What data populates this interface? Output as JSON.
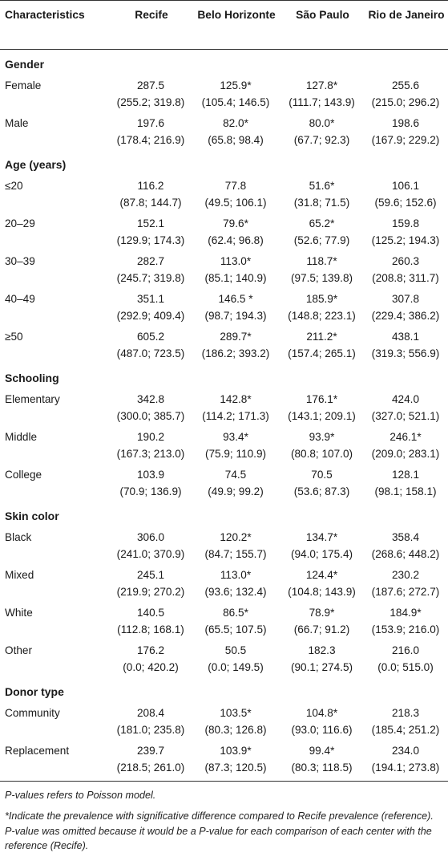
{
  "table": {
    "headers": [
      "Characteristics",
      "Recife",
      "Belo Horizonte",
      "São Paulo",
      "Rio de Janeiro"
    ],
    "sections": [
      {
        "title": "Gender",
        "rows": [
          {
            "label": "Female",
            "cells": [
              [
                "287.5",
                "(255.2; 319.8)"
              ],
              [
                "125.9*",
                "(105.4; 146.5)"
              ],
              [
                "127.8*",
                "(111.7; 143.9)"
              ],
              [
                "255.6",
                "(215.0; 296.2)"
              ]
            ]
          },
          {
            "label": "Male",
            "cells": [
              [
                "197.6",
                "(178.4; 216.9)"
              ],
              [
                "82.0*",
                "(65.8; 98.4)"
              ],
              [
                "80.0*",
                "(67.7; 92.3)"
              ],
              [
                "198.6",
                "(167.9; 229.2)"
              ]
            ]
          }
        ]
      },
      {
        "title": "Age (years)",
        "rows": [
          {
            "label": "≤20",
            "cells": [
              [
                "116.2",
                "(87.8; 144.7)"
              ],
              [
                "77.8",
                "(49.5; 106.1)"
              ],
              [
                "51.6*",
                "(31.8; 71.5)"
              ],
              [
                "106.1",
                "(59.6; 152.6)"
              ]
            ]
          },
          {
            "label": "20–29",
            "cells": [
              [
                "152.1",
                "(129.9; 174.3)"
              ],
              [
                "79.6*",
                "(62.4; 96.8)"
              ],
              [
                "65.2*",
                "(52.6; 77.9)"
              ],
              [
                "159.8",
                "(125.2; 194.3)"
              ]
            ]
          },
          {
            "label": "30–39",
            "cells": [
              [
                "282.7",
                "(245.7; 319.8)"
              ],
              [
                "113.0*",
                "(85.1; 140.9)"
              ],
              [
                "118.7*",
                "(97.5; 139.8)"
              ],
              [
                "260.3",
                "(208.8; 311.7)"
              ]
            ]
          },
          {
            "label": "40–49",
            "cells": [
              [
                "351.1",
                "(292.9; 409.4)"
              ],
              [
                "146.5 *",
                "(98.7; 194.3)"
              ],
              [
                "185.9*",
                "(148.8; 223.1)"
              ],
              [
                "307.8",
                "(229.4; 386.2)"
              ]
            ]
          },
          {
            "label": "≥50",
            "cells": [
              [
                "605.2",
                "(487.0; 723.5)"
              ],
              [
                "289.7*",
                "(186.2; 393.2)"
              ],
              [
                "211.2*",
                "(157.4; 265.1)"
              ],
              [
                "438.1",
                "(319.3; 556.9)"
              ]
            ]
          }
        ]
      },
      {
        "title": "Schooling",
        "rows": [
          {
            "label": "Elementary",
            "cells": [
              [
                "342.8",
                "(300.0; 385.7)"
              ],
              [
                "142.8*",
                "(114.2; 171.3)"
              ],
              [
                "176.1*",
                "(143.1; 209.1)"
              ],
              [
                "424.0",
                "(327.0; 521.1)"
              ]
            ]
          },
          {
            "label": "Middle",
            "cells": [
              [
                "190.2",
                "(167.3; 213.0)"
              ],
              [
                "93.4*",
                "(75.9; 110.9)"
              ],
              [
                "93.9*",
                "(80.8; 107.0)"
              ],
              [
                "246.1*",
                "(209.0; 283.1)"
              ]
            ]
          },
          {
            "label": "College",
            "cells": [
              [
                "103.9",
                "(70.9; 136.9)"
              ],
              [
                "74.5",
                "(49.9; 99.2)"
              ],
              [
                "70.5",
                "(53.6; 87.3)"
              ],
              [
                "128.1",
                "(98.1; 158.1)"
              ]
            ]
          }
        ]
      },
      {
        "title": "Skin color",
        "rows": [
          {
            "label": "Black",
            "cells": [
              [
                "306.0",
                "(241.0; 370.9)"
              ],
              [
                "120.2*",
                "(84.7; 155.7)"
              ],
              [
                "134.7*",
                "(94.0; 175.4)"
              ],
              [
                "358.4",
                "(268.6; 448.2)"
              ]
            ]
          },
          {
            "label": "Mixed",
            "cells": [
              [
                "245.1",
                "(219.9; 270.2)"
              ],
              [
                "113.0*",
                "(93.6; 132.4)"
              ],
              [
                "124.4*",
                "(104.8; 143.9)"
              ],
              [
                "230.2",
                "(187.6; 272.7)"
              ]
            ]
          },
          {
            "label": "White",
            "cells": [
              [
                "140.5",
                "(112.8; 168.1)"
              ],
              [
                "86.5*",
                "(65.5; 107.5)"
              ],
              [
                "78.9*",
                "(66.7; 91.2)"
              ],
              [
                "184.9*",
                "(153.9; 216.0)"
              ]
            ]
          },
          {
            "label": "Other",
            "cells": [
              [
                "176.2",
                "(0.0; 420.2)"
              ],
              [
                "50.5",
                "(0.0; 149.5)"
              ],
              [
                "182.3",
                "(90.1; 274.5)"
              ],
              [
                "216.0",
                "(0.0; 515.0)"
              ]
            ]
          }
        ]
      },
      {
        "title": "Donor type",
        "rows": [
          {
            "label": "Community",
            "cells": [
              [
                "208.4",
                "(181.0; 235.8)"
              ],
              [
                "103.5*",
                "(80.3; 126.8)"
              ],
              [
                "104.8*",
                "(93.0; 116.6)"
              ],
              [
                "218.3",
                "(185.4; 251.2)"
              ]
            ]
          },
          {
            "label": "Replacement",
            "cells": [
              [
                "239.7",
                "(218.5; 261.0)"
              ],
              [
                "103.9*",
                "(87.3; 120.5)"
              ],
              [
                "99.4*",
                "(80.3; 118.5)"
              ],
              [
                "234.0",
                "(194.1; 273.8)"
              ]
            ]
          }
        ]
      }
    ]
  },
  "notes": {
    "note1": "P-values refers to Poisson model.",
    "note2": "*Indicate the prevalence with significative difference compared to Recife prevalence (reference). P-value was omitted because it would be a P-value for each comparison of each center with the reference (Recife)."
  }
}
